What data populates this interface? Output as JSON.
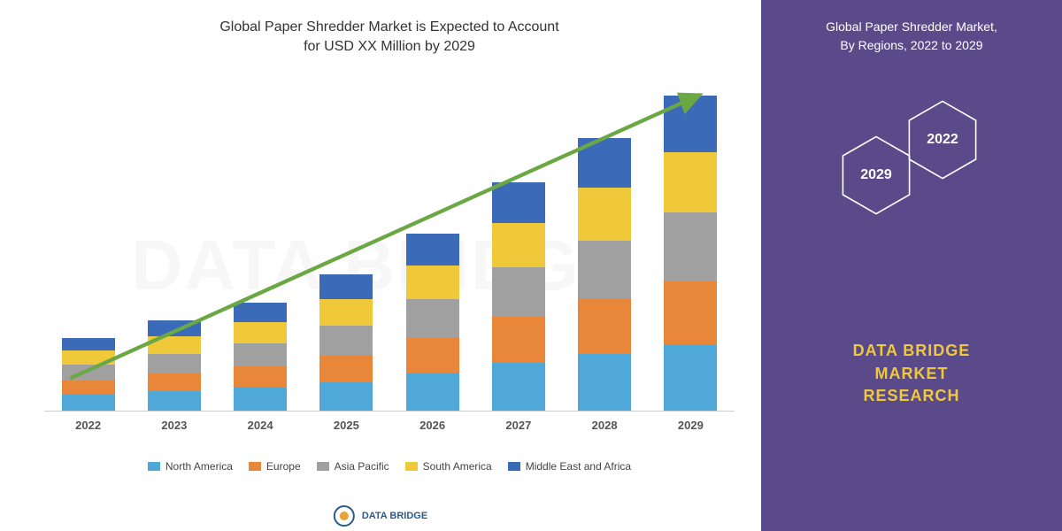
{
  "chart": {
    "type": "stacked-bar",
    "title": "Global Paper Shredder Market is Expected to Account\nfor USD XX Million by 2029",
    "watermark": "DATA BRIDGE",
    "categories": [
      "2022",
      "2023",
      "2024",
      "2025",
      "2026",
      "2027",
      "2028",
      "2029"
    ],
    "series": [
      {
        "name": "North America",
        "color": "#4fa8d8",
        "values": [
          18,
          22,
          26,
          32,
          42,
          54,
          64,
          74
        ]
      },
      {
        "name": "Europe",
        "color": "#e8873a",
        "values": [
          16,
          20,
          24,
          30,
          40,
          52,
          62,
          72
        ]
      },
      {
        "name": "Asia Pacific",
        "color": "#a0a0a0",
        "values": [
          18,
          22,
          26,
          34,
          44,
          56,
          66,
          78
        ]
      },
      {
        "name": "South America",
        "color": "#f0c93a",
        "values": [
          16,
          20,
          24,
          30,
          38,
          50,
          60,
          68
        ]
      },
      {
        "name": "Middle East and Africa",
        "color": "#3a6ab8",
        "values": [
          14,
          18,
          22,
          28,
          36,
          46,
          56,
          64
        ]
      }
    ],
    "max_total": 380,
    "arrow_color": "#6ba843",
    "background": "#ffffff",
    "x_label_fontsize": 13,
    "title_fontsize": 16
  },
  "side": {
    "title": "Global Paper Shredder Market,\nBy Regions, 2022 to 2029",
    "background": "#5b4a8a",
    "hex_stroke": "#ffffff",
    "hex_labels": [
      "2029",
      "2022"
    ],
    "brand": "DATA BRIDGE\nMARKET\nRESEARCH",
    "brand_color": "#f0c93a"
  },
  "footer": {
    "logo_text": "DATA BRIDGE"
  }
}
